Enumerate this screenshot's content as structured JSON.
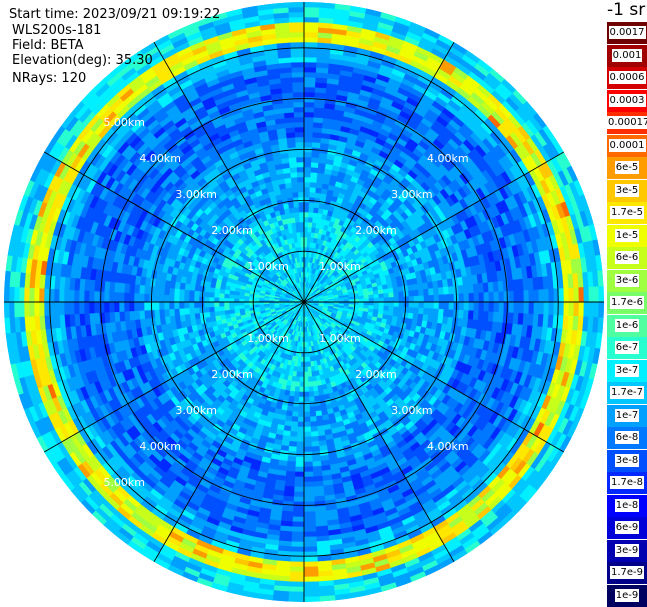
{
  "header": {
    "start_time": "Start time: 2023/09/21 09:19:22",
    "instrument": "WLS200s-181",
    "field": "Field: BETA",
    "elevation": "Elevation(deg): 35.30",
    "nrays": "NRays: 120"
  },
  "colorbar": {
    "units": "-1 sr",
    "labels": [
      "0.0017",
      "0.001",
      "0.0006",
      "0.0003",
      "0.00017",
      "0.0001",
      "6e-5",
      "3e-5",
      "1.7e-5",
      "1e-5",
      "6e-6",
      "3e-6",
      "1.7e-6",
      "1e-6",
      "6e-7",
      "3e-7",
      "1.7e-7",
      "1e-7",
      "6e-8",
      "3e-8",
      "1.7e-8",
      "1e-8",
      "6e-9",
      "3e-9",
      "1.7e-9",
      "1e-9"
    ],
    "colors": [
      "#6e0000",
      "#a00000",
      "#d20000",
      "#ff0000",
      "#ff2e00",
      "#ff6a00",
      "#ff9c00",
      "#ffc800",
      "#ffe800",
      "#f0ff00",
      "#c8ff1a",
      "#a0ff40",
      "#78ff68",
      "#50ffa0",
      "#28ffd0",
      "#00f0ff",
      "#00c8ff",
      "#00a0ff",
      "#0078ff",
      "#0050ff",
      "#0028ff",
      "#0000ff",
      "#0000d8",
      "#0000b0",
      "#000088",
      "#000060"
    ]
  },
  "ppi": {
    "range_labels": [
      "1.00km",
      "2.00km",
      "3.00km",
      "4.00km",
      "5.00km"
    ],
    "max_range_km": 5.9,
    "spoke_angles_deg": [
      0,
      30,
      60,
      90,
      120,
      150,
      180,
      210,
      240,
      270,
      300,
      330
    ]
  }
}
